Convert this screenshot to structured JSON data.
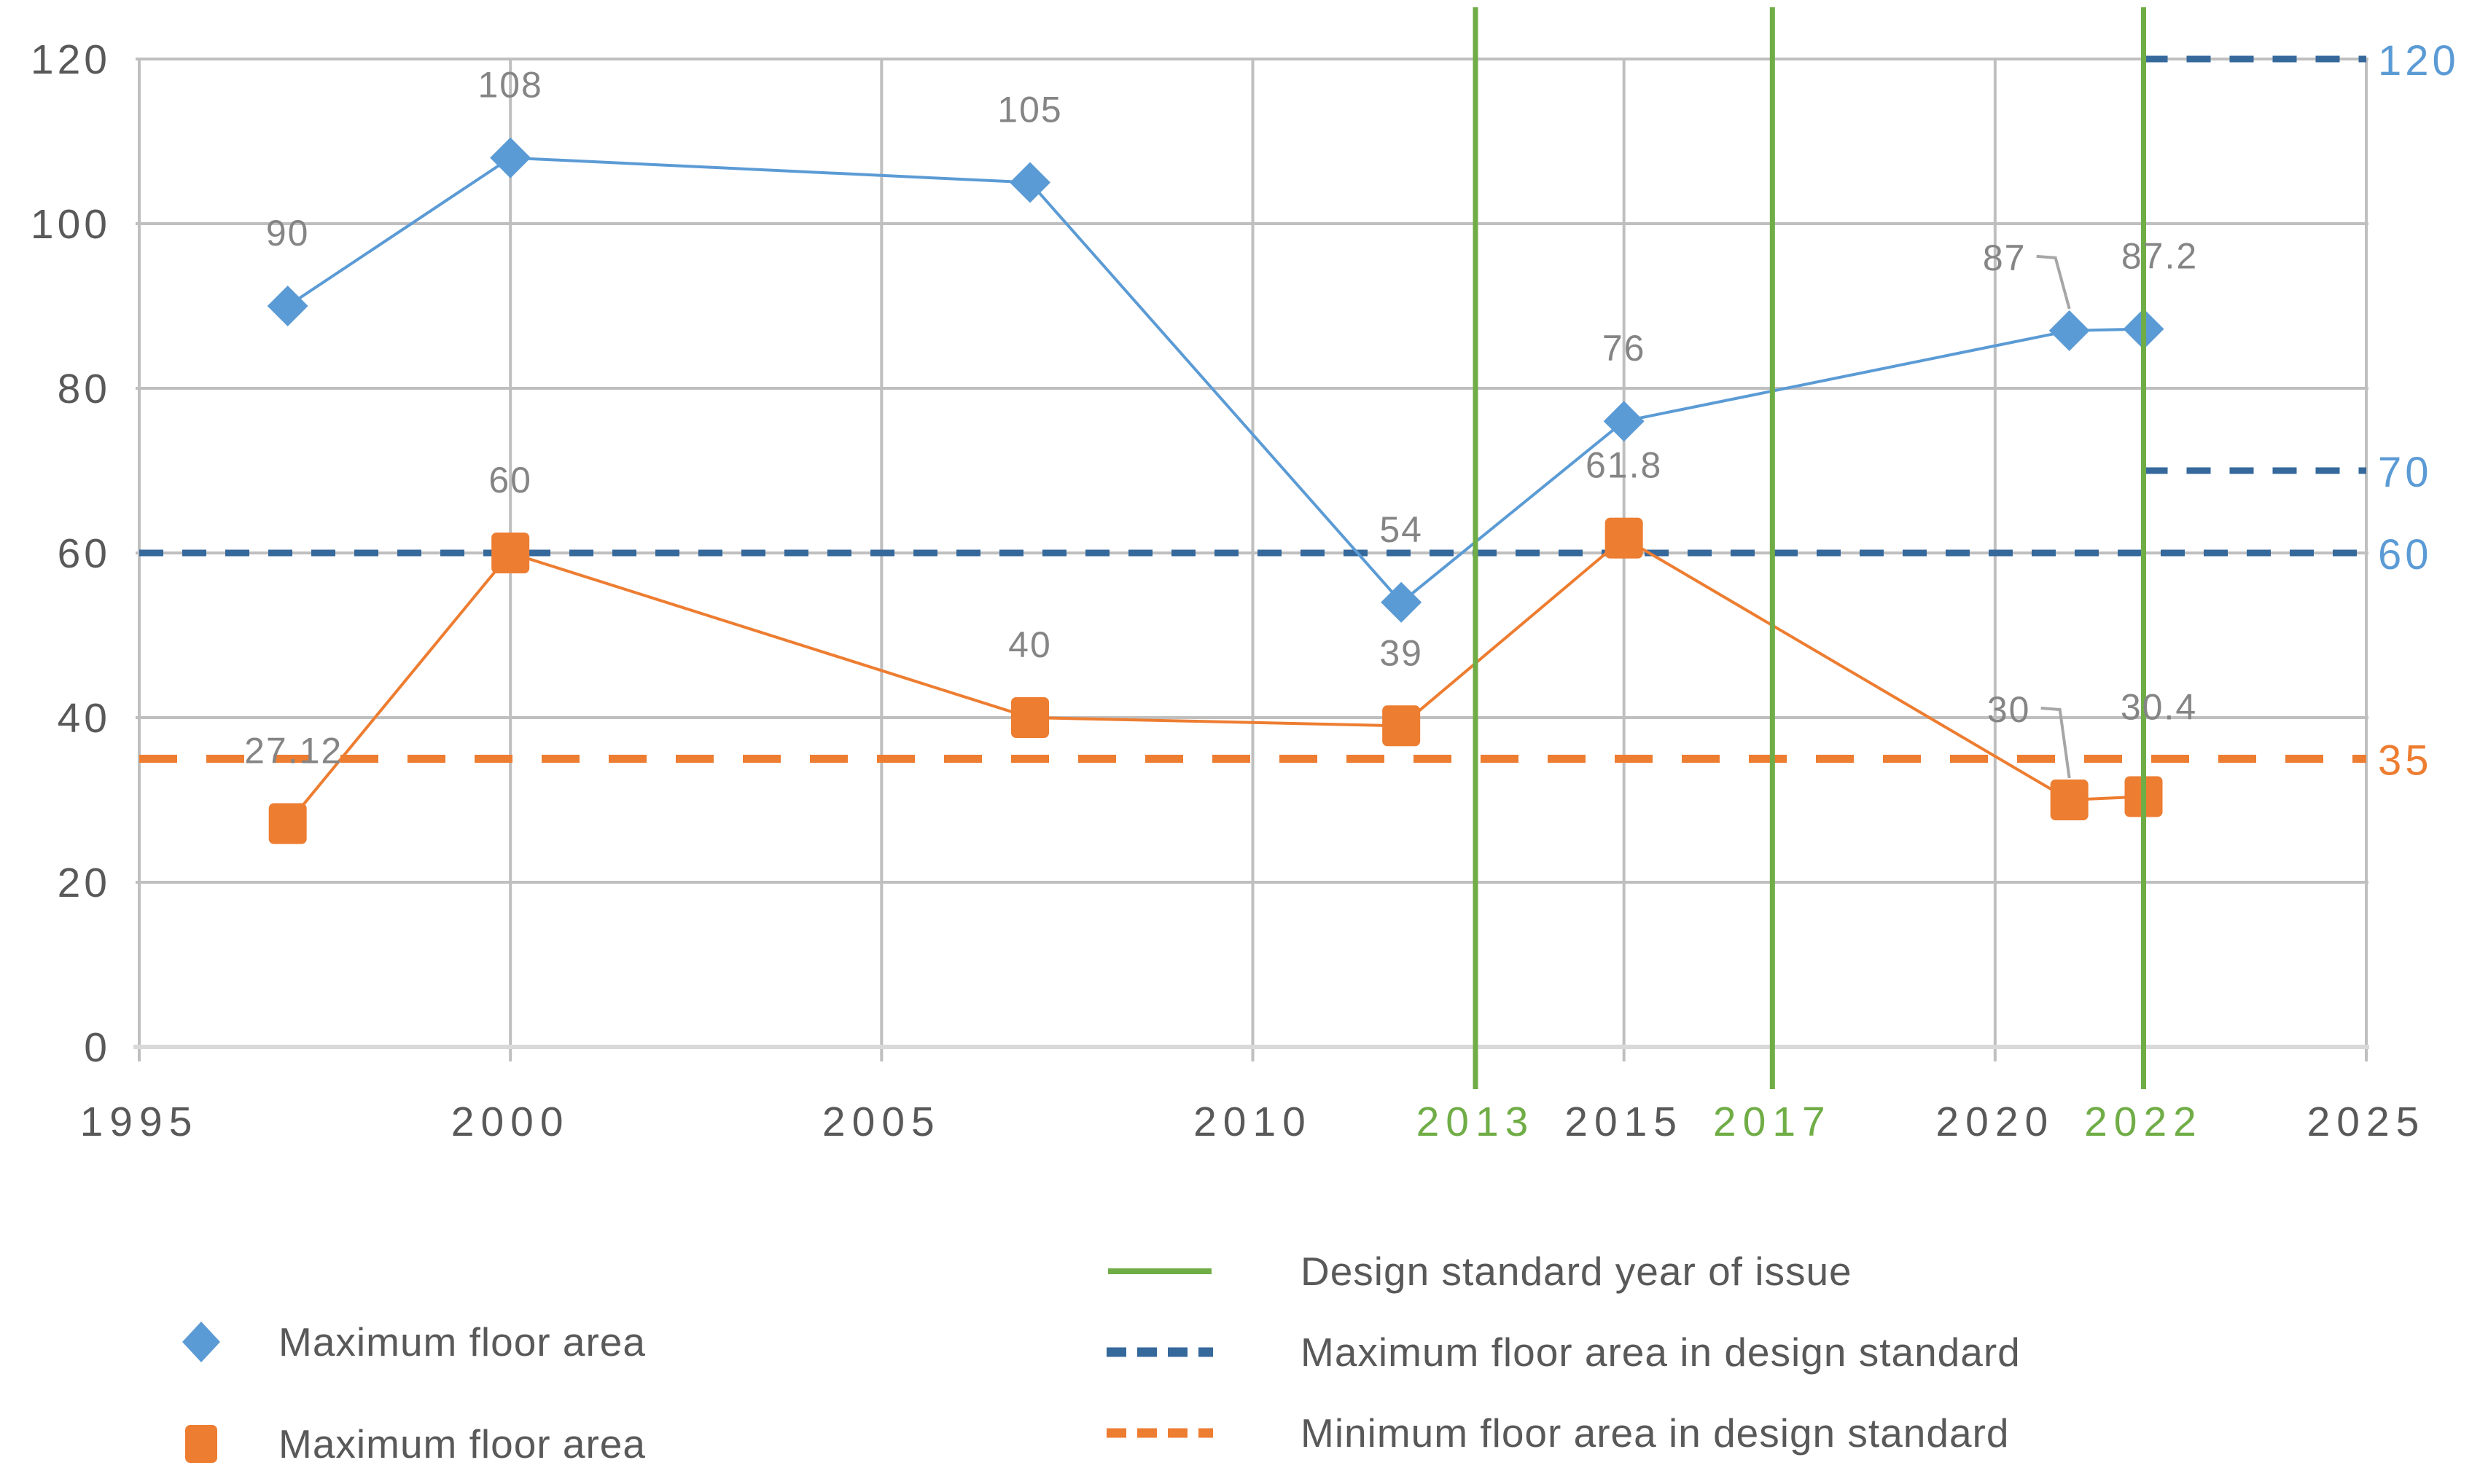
{
  "colors": {
    "series_max": "#5B9BD5",
    "series_min": "#ED7D31",
    "standard_max": "#35689B",
    "standard_min": "#ED7D31",
    "design_year": "#70AD47",
    "gridline": "#BFBFBF",
    "axis_line": "#D9D9D9",
    "tick_label": "#595959",
    "green_tick_label": "#70AD47",
    "data_label": "#858585",
    "leader": "#A6A6A6"
  },
  "chart_data": {
    "type": "line",
    "title": "",
    "xlabel": "",
    "ylabel": "",
    "x": {
      "min": 1995,
      "max": 2025,
      "ticks": [
        1995,
        2000,
        2005,
        2010,
        2015,
        2020,
        2025
      ],
      "design_standard_years": [
        2013,
        2017,
        2022
      ]
    },
    "y": {
      "min": 0,
      "max": 120,
      "ticks": [
        0,
        20,
        40,
        60,
        80,
        100,
        120
      ]
    },
    "series": [
      {
        "name": "Maximum floor area",
        "marker": "diamond",
        "color": "#5B9BD5",
        "points": [
          {
            "year": 1997,
            "value": 90,
            "label": "90"
          },
          {
            "year": 2000,
            "value": 108,
            "label": "108"
          },
          {
            "year": 2007,
            "value": 105,
            "label": "105"
          },
          {
            "year": 2012,
            "value": 54,
            "label": "54"
          },
          {
            "year": 2015,
            "value": 76,
            "label": "76"
          },
          {
            "year": 2021,
            "value": 87,
            "label": "87",
            "label_offset": [
              -89,
              0
            ],
            "leader": true
          },
          {
            "year": 2022,
            "value": 87.2,
            "label": "87.2",
            "label_offset": [
              22,
              0
            ]
          }
        ]
      },
      {
        "name": "Maximum floor area",
        "marker": "square",
        "color": "#ED7D31",
        "points": [
          {
            "year": 1997,
            "value": 27.12,
            "label": "27.12",
            "label_offset": [
              8,
              0
            ]
          },
          {
            "year": 2000,
            "value": 60,
            "label": "60"
          },
          {
            "year": 2007,
            "value": 40,
            "label": "40"
          },
          {
            "year": 2012,
            "value": 39,
            "label": "39"
          },
          {
            "year": 2015,
            "value": 61.8,
            "label": "61.8"
          },
          {
            "year": 2021,
            "value": 30,
            "label": "30",
            "label_offset": [
              -83,
              -24
            ],
            "leader": true
          },
          {
            "year": 2022,
            "value": 30.4,
            "label": "30.4",
            "label_offset": [
              21,
              -23
            ]
          }
        ]
      }
    ],
    "standard_lines": {
      "maximum": {
        "name": "Maximum floor area in design standard",
        "color": "#35689B",
        "segments": [
          {
            "value": 60,
            "from": 1995,
            "to": 2025
          },
          {
            "value": 70,
            "from": 2022,
            "to": 2025
          },
          {
            "value": 120,
            "from": 2022,
            "to": 2025
          }
        ]
      },
      "minimum": {
        "name": "Minimum floor area in design standard",
        "color": "#ED7D31",
        "segments": [
          {
            "value": 35,
            "from": 1995,
            "to": 2025
          }
        ]
      }
    },
    "right_axis_labels": [
      {
        "text": "120",
        "value": 120,
        "color": "#5B9BD5"
      },
      {
        "text": "70",
        "value": 70,
        "color": "#5B9BD5"
      },
      {
        "text": "60",
        "value": 60,
        "color": "#5B9BD5"
      },
      {
        "text": "35",
        "value": 35,
        "color": "#ED7D31"
      }
    ],
    "legend_position": "bottom"
  },
  "legend": {
    "left": [
      {
        "marker": "diamond",
        "color": "#5B9BD5",
        "label": "Maximum floor area"
      },
      {
        "marker": "square",
        "color": "#ED7D31",
        "label": "Maximum floor area"
      }
    ],
    "right": [
      {
        "marker": "solid-line",
        "color": "#70AD47",
        "label": "Design standard year of issue"
      },
      {
        "marker": "dashed-line",
        "color": "#35689B",
        "label": "Maximum floor area in design standard"
      },
      {
        "marker": "dashed-line",
        "color": "#ED7D31",
        "label": "Minimum floor area in design standard"
      }
    ]
  }
}
